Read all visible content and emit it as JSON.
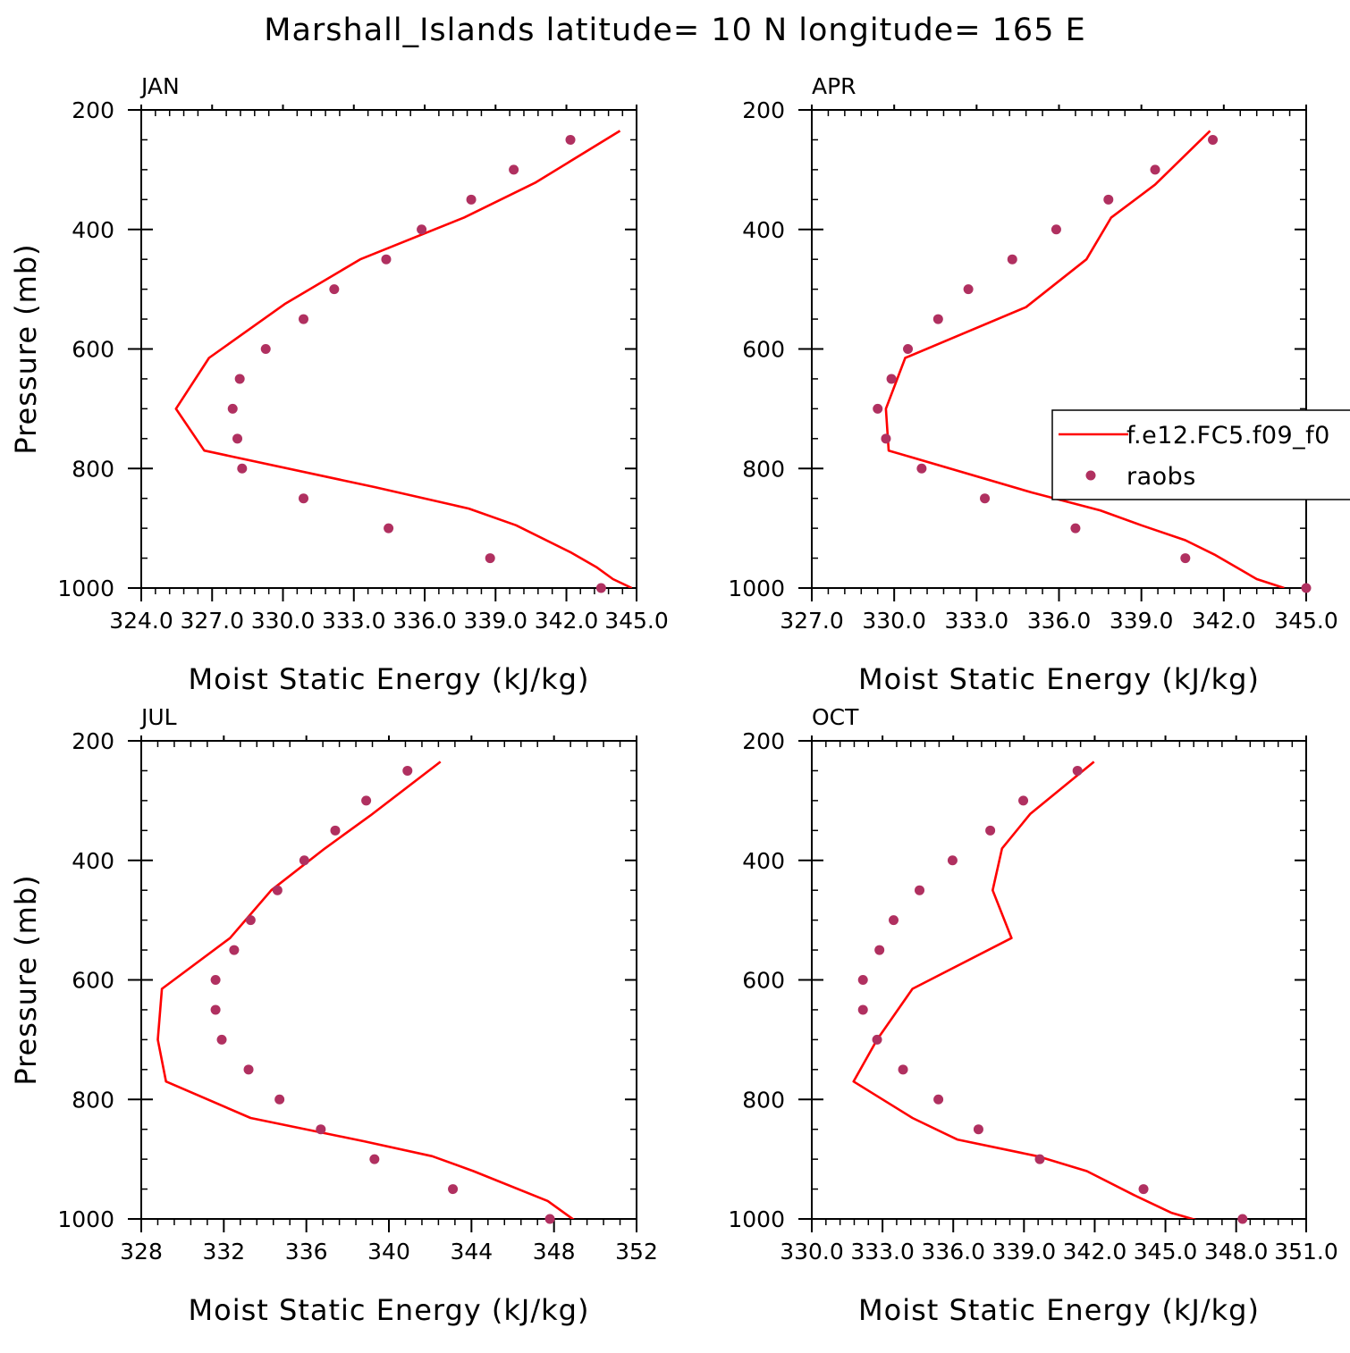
{
  "title": "Marshall_Islands  latitude= 10 N longitude= 165 E",
  "colors": {
    "model": "#ff0000",
    "obs": "#b03060",
    "axis": "#000000"
  },
  "legend": {
    "model_label": "f.e12.FC5.f09_f0",
    "obs_label": "raobs"
  },
  "chart_data": [
    {
      "type": "line+scatter",
      "panel": "JAN",
      "xlabel": "Moist Static Energy (kJ/kg)",
      "ylabel": "Pressure (mb)",
      "xlim": [
        324.03,
        345.0
      ],
      "ylim": [
        200,
        1000
      ],
      "x_ticks": [
        324.03,
        327.03,
        330.03,
        333.03,
        336.03,
        339.03,
        342.03,
        345.0
      ],
      "x_tick_labels": [
        "324.0",
        "327.0",
        "330.0",
        "333.0",
        "336.0",
        "339.0",
        "342.0",
        "345.0"
      ],
      "y_ticks": [
        200,
        400,
        600,
        800,
        1000
      ],
      "y_tick_labels": [
        "200",
        "400",
        "600",
        "800",
        "1000"
      ],
      "model": {
        "name": "f.e12.FC5.f09_f0",
        "p": [
          1000,
          985,
          965,
          940,
          895,
          867,
          831,
          770,
          700,
          615,
          525,
          450,
          380,
          322,
          235
        ],
        "mse": [
          344.8,
          344.0,
          343.3,
          342.2,
          339.9,
          337.9,
          333.9,
          326.7,
          325.5,
          326.9,
          330.1,
          333.3,
          337.7,
          340.7,
          344.3
        ]
      },
      "obs": {
        "name": "raobs",
        "p": [
          1000,
          950,
          900,
          850,
          800,
          750,
          700,
          650,
          600,
          550,
          500,
          450,
          400,
          350,
          300,
          250
        ],
        "mse": [
          343.5,
          338.8,
          334.5,
          330.9,
          328.3,
          328.1,
          327.9,
          328.2,
          329.3,
          330.9,
          332.2,
          334.4,
          335.9,
          338.0,
          339.8,
          342.2
        ]
      }
    },
    {
      "type": "line+scatter",
      "panel": "APR",
      "xlabel": "Moist Static Energy (kJ/kg)",
      "ylabel": "Pressure (mb)",
      "xlim": [
        327.0,
        345.0
      ],
      "ylim": [
        200,
        1000
      ],
      "x_ticks": [
        327.0,
        330.0,
        333.0,
        336.0,
        339.0,
        342.0,
        345.0
      ],
      "x_tick_labels": [
        "327.0",
        "330.0",
        "333.0",
        "336.0",
        "339.0",
        "342.0",
        "345.0"
      ],
      "y_ticks": [
        200,
        400,
        600,
        800,
        1000
      ],
      "y_tick_labels": [
        "200",
        "400",
        "600",
        "800",
        "1000"
      ],
      "model": {
        "name": "f.e12.FC5.f09_f0",
        "p": [
          1000,
          985,
          945,
          920,
          895,
          870,
          840,
          770,
          700,
          615,
          530,
          450,
          380,
          325,
          235
        ],
        "mse": [
          344.2,
          343.2,
          341.7,
          340.6,
          339.0,
          337.5,
          335.0,
          329.8,
          329.7,
          330.4,
          334.8,
          337.0,
          337.9,
          339.5,
          341.5
        ]
      },
      "obs": {
        "name": "raobs",
        "p": [
          1000,
          950,
          900,
          850,
          800,
          750,
          700,
          650,
          600,
          550,
          500,
          450,
          400,
          350,
          300,
          250
        ],
        "mse": [
          345.0,
          340.6,
          336.6,
          333.3,
          331.0,
          329.7,
          329.4,
          329.9,
          330.5,
          331.6,
          332.7,
          334.3,
          335.9,
          337.8,
          339.5,
          341.6
        ]
      }
    },
    {
      "type": "line+scatter",
      "panel": "JUL",
      "xlabel": "Moist Static Energy (kJ/kg)",
      "ylabel": "Pressure (mb)",
      "xlim": [
        328,
        352
      ],
      "ylim": [
        200,
        1000
      ],
      "x_ticks": [
        328,
        332,
        336,
        340,
        344,
        348,
        352
      ],
      "x_tick_labels": [
        "328",
        "332",
        "336",
        "340",
        "344",
        "348",
        "352"
      ],
      "y_ticks": [
        200,
        400,
        600,
        800,
        1000
      ],
      "y_tick_labels": [
        "200",
        "400",
        "600",
        "800",
        "1000"
      ],
      "model": {
        "name": "f.e12.FC5.f09_f0",
        "p": [
          1005,
          970,
          920,
          895,
          870,
          831,
          770,
          700,
          615,
          530,
          450,
          380,
          325,
          235
        ],
        "mse": [
          349.1,
          347.7,
          344.1,
          342.1,
          338.8,
          333.3,
          329.2,
          328.8,
          329.0,
          332.3,
          334.3,
          336.9,
          339.1,
          342.5
        ]
      },
      "obs": {
        "name": "raobs",
        "p": [
          1000,
          950,
          900,
          850,
          800,
          750,
          700,
          650,
          600,
          550,
          500,
          450,
          400,
          350,
          300,
          250
        ],
        "mse": [
          347.8,
          343.1,
          339.3,
          336.7,
          334.7,
          333.2,
          331.9,
          331.6,
          331.6,
          332.5,
          333.3,
          334.6,
          335.9,
          337.4,
          338.9,
          340.9
        ]
      }
    },
    {
      "type": "line+scatter",
      "panel": "OCT",
      "xlabel": "Moist Static Energy (kJ/kg)",
      "ylabel": "Pressure (mb)",
      "xlim": [
        330.03,
        351.0
      ],
      "ylim": [
        200,
        1000
      ],
      "x_ticks": [
        330.03,
        333.03,
        336.03,
        339.03,
        342.03,
        345.03,
        348.03,
        351.0
      ],
      "x_tick_labels": [
        "330.0",
        "333.0",
        "336.0",
        "339.0",
        "342.0",
        "345.0",
        "348.0",
        "351.0"
      ],
      "y_ticks": [
        200,
        400,
        600,
        800,
        1000
      ],
      "y_tick_labels": [
        "200",
        "400",
        "600",
        "800",
        "1000"
      ],
      "model": {
        "name": "f.e12.FC5.f09_f0",
        "p": [
          1005,
          990,
          960,
          920,
          895,
          867,
          831,
          770,
          700,
          615,
          530,
          450,
          380,
          322,
          235
        ],
        "mse": [
          346.6,
          345.3,
          343.7,
          341.7,
          339.6,
          336.2,
          334.3,
          331.8,
          332.8,
          334.3,
          338.5,
          337.7,
          338.1,
          339.3,
          342.0
        ]
      },
      "obs": {
        "name": "raobs",
        "p": [
          1000,
          950,
          900,
          850,
          800,
          750,
          700,
          650,
          600,
          550,
          500,
          450,
          400,
          350,
          300,
          250
        ],
        "mse": [
          348.3,
          344.1,
          339.7,
          337.1,
          335.4,
          333.9,
          332.8,
          332.2,
          332.2,
          332.9,
          333.5,
          334.6,
          336.0,
          337.6,
          339.0,
          341.3
        ]
      }
    }
  ]
}
